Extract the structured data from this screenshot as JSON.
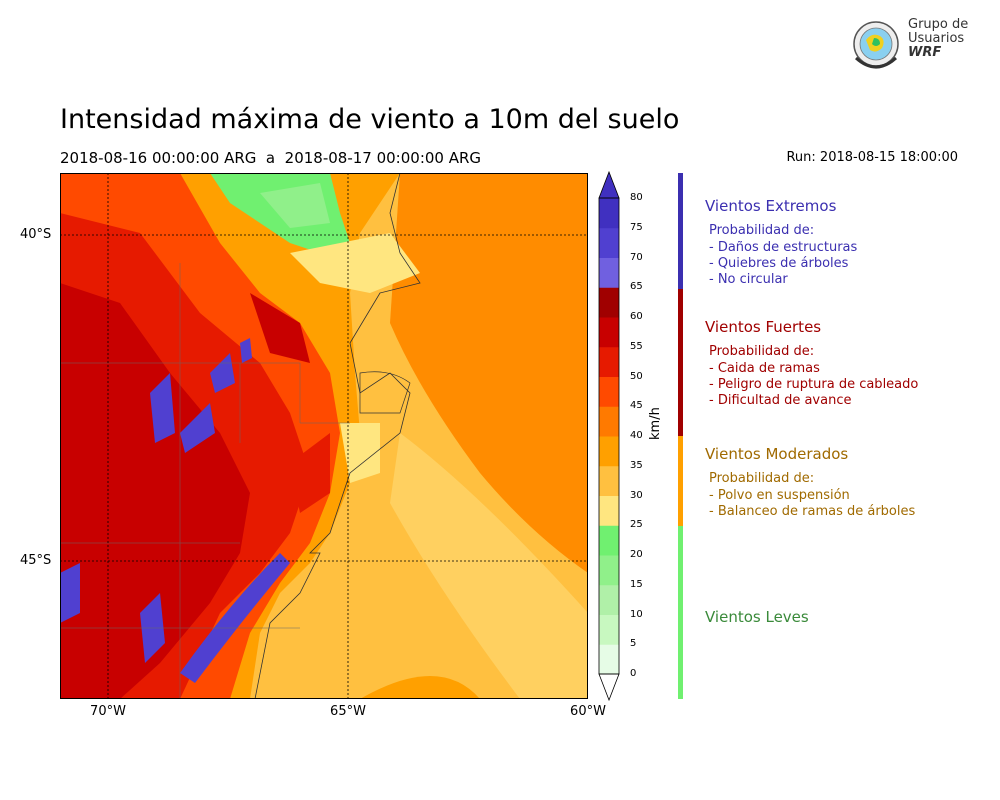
{
  "logo": {
    "line1": "Grupo de",
    "line2": "Usuarios",
    "line3": "WRF",
    "icon": "globe-seal-icon"
  },
  "title": "Intensidad máxima de viento a 10m del suelo",
  "period": "2018-08-16 00:00:00 ARG  a  2018-08-17 00:00:00 ARG",
  "run": "Run: 2018-08-15 18:00:00",
  "map": {
    "lat_labels": [
      "40°S",
      "45°S"
    ],
    "lon_labels": [
      "70°W",
      "65°W",
      "60°W"
    ],
    "grid": "dotted"
  },
  "colorbar": {
    "unit": "km/h",
    "ticks": [
      "80",
      "75",
      "70",
      "65",
      "60",
      "55",
      "50",
      "45",
      "40",
      "35",
      "30",
      "25",
      "20",
      "15",
      "10",
      "5",
      "0"
    ],
    "colors": [
      "#e6fce6",
      "#c8f8c0",
      "#b0f0a8",
      "#90f08a",
      "#70f070",
      "#ffe680",
      "#ffc040",
      "#ffa000",
      "#ff7a00",
      "#ff4a00",
      "#e61a00",
      "#c80000",
      "#a00000",
      "#7060e0",
      "#5040d0",
      "#4030c0"
    ]
  },
  "categories": [
    {
      "title": "Vientos Extremos",
      "color": "#3b2fb0",
      "lines": [
        "Probabilidad de:",
        "- Daños de estructuras",
        "- Quiebres de árboles",
        "- No circular"
      ]
    },
    {
      "title": "Vientos Fuertes",
      "color": "#a00000",
      "lines": [
        "Probabilidad de:",
        "- Caida de ramas",
        "- Peligro de ruptura de cableado",
        "- Dificultad de avance"
      ]
    },
    {
      "title": "Vientos Moderados",
      "color": "#a06a00",
      "lines": [
        "Probabilidad de:",
        "- Polvo en suspensión",
        "- Balanceo de ramas de árboles"
      ]
    },
    {
      "title": "Vientos Leves",
      "color": "#3a8a3a",
      "lines": []
    }
  ],
  "category_bar_colors": [
    "#3b2fb0",
    "#a00000",
    "#ffa000",
    "#70f070"
  ]
}
